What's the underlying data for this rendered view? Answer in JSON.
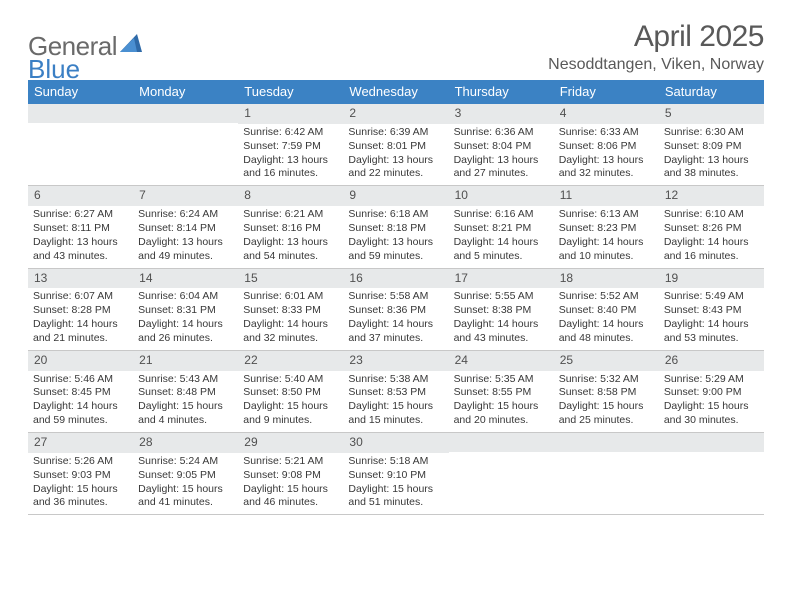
{
  "logo": {
    "part1": "General",
    "part2": "Blue"
  },
  "title": "April 2025",
  "location": "Nesoddtangen, Viken, Norway",
  "weekdays": [
    "Sunday",
    "Monday",
    "Tuesday",
    "Wednesday",
    "Thursday",
    "Friday",
    "Saturday"
  ],
  "colors": {
    "header_bg": "#3b82c4",
    "header_text": "#ffffff",
    "daynum_bg": "#e7e9ea",
    "text": "#383838",
    "title_text": "#595959",
    "logo_gray": "#6a6a6a",
    "logo_blue": "#3b7fc4",
    "rule": "#c8c8c8"
  },
  "layout": {
    "cell_min_height": 78,
    "body_fontsize": 10.5,
    "daynum_fontsize": 12,
    "weekday_fontsize": 13
  },
  "weeks": [
    [
      {
        "empty": true
      },
      {
        "empty": true
      },
      {
        "num": "1",
        "sunrise": "Sunrise: 6:42 AM",
        "sunset": "Sunset: 7:59 PM",
        "daylight": "Daylight: 13 hours and 16 minutes."
      },
      {
        "num": "2",
        "sunrise": "Sunrise: 6:39 AM",
        "sunset": "Sunset: 8:01 PM",
        "daylight": "Daylight: 13 hours and 22 minutes."
      },
      {
        "num": "3",
        "sunrise": "Sunrise: 6:36 AM",
        "sunset": "Sunset: 8:04 PM",
        "daylight": "Daylight: 13 hours and 27 minutes."
      },
      {
        "num": "4",
        "sunrise": "Sunrise: 6:33 AM",
        "sunset": "Sunset: 8:06 PM",
        "daylight": "Daylight: 13 hours and 32 minutes."
      },
      {
        "num": "5",
        "sunrise": "Sunrise: 6:30 AM",
        "sunset": "Sunset: 8:09 PM",
        "daylight": "Daylight: 13 hours and 38 minutes."
      }
    ],
    [
      {
        "num": "6",
        "sunrise": "Sunrise: 6:27 AM",
        "sunset": "Sunset: 8:11 PM",
        "daylight": "Daylight: 13 hours and 43 minutes."
      },
      {
        "num": "7",
        "sunrise": "Sunrise: 6:24 AM",
        "sunset": "Sunset: 8:14 PM",
        "daylight": "Daylight: 13 hours and 49 minutes."
      },
      {
        "num": "8",
        "sunrise": "Sunrise: 6:21 AM",
        "sunset": "Sunset: 8:16 PM",
        "daylight": "Daylight: 13 hours and 54 minutes."
      },
      {
        "num": "9",
        "sunrise": "Sunrise: 6:18 AM",
        "sunset": "Sunset: 8:18 PM",
        "daylight": "Daylight: 13 hours and 59 minutes."
      },
      {
        "num": "10",
        "sunrise": "Sunrise: 6:16 AM",
        "sunset": "Sunset: 8:21 PM",
        "daylight": "Daylight: 14 hours and 5 minutes."
      },
      {
        "num": "11",
        "sunrise": "Sunrise: 6:13 AM",
        "sunset": "Sunset: 8:23 PM",
        "daylight": "Daylight: 14 hours and 10 minutes."
      },
      {
        "num": "12",
        "sunrise": "Sunrise: 6:10 AM",
        "sunset": "Sunset: 8:26 PM",
        "daylight": "Daylight: 14 hours and 16 minutes."
      }
    ],
    [
      {
        "num": "13",
        "sunrise": "Sunrise: 6:07 AM",
        "sunset": "Sunset: 8:28 PM",
        "daylight": "Daylight: 14 hours and 21 minutes."
      },
      {
        "num": "14",
        "sunrise": "Sunrise: 6:04 AM",
        "sunset": "Sunset: 8:31 PM",
        "daylight": "Daylight: 14 hours and 26 minutes."
      },
      {
        "num": "15",
        "sunrise": "Sunrise: 6:01 AM",
        "sunset": "Sunset: 8:33 PM",
        "daylight": "Daylight: 14 hours and 32 minutes."
      },
      {
        "num": "16",
        "sunrise": "Sunrise: 5:58 AM",
        "sunset": "Sunset: 8:36 PM",
        "daylight": "Daylight: 14 hours and 37 minutes."
      },
      {
        "num": "17",
        "sunrise": "Sunrise: 5:55 AM",
        "sunset": "Sunset: 8:38 PM",
        "daylight": "Daylight: 14 hours and 43 minutes."
      },
      {
        "num": "18",
        "sunrise": "Sunrise: 5:52 AM",
        "sunset": "Sunset: 8:40 PM",
        "daylight": "Daylight: 14 hours and 48 minutes."
      },
      {
        "num": "19",
        "sunrise": "Sunrise: 5:49 AM",
        "sunset": "Sunset: 8:43 PM",
        "daylight": "Daylight: 14 hours and 53 minutes."
      }
    ],
    [
      {
        "num": "20",
        "sunrise": "Sunrise: 5:46 AM",
        "sunset": "Sunset: 8:45 PM",
        "daylight": "Daylight: 14 hours and 59 minutes."
      },
      {
        "num": "21",
        "sunrise": "Sunrise: 5:43 AM",
        "sunset": "Sunset: 8:48 PM",
        "daylight": "Daylight: 15 hours and 4 minutes."
      },
      {
        "num": "22",
        "sunrise": "Sunrise: 5:40 AM",
        "sunset": "Sunset: 8:50 PM",
        "daylight": "Daylight: 15 hours and 9 minutes."
      },
      {
        "num": "23",
        "sunrise": "Sunrise: 5:38 AM",
        "sunset": "Sunset: 8:53 PM",
        "daylight": "Daylight: 15 hours and 15 minutes."
      },
      {
        "num": "24",
        "sunrise": "Sunrise: 5:35 AM",
        "sunset": "Sunset: 8:55 PM",
        "daylight": "Daylight: 15 hours and 20 minutes."
      },
      {
        "num": "25",
        "sunrise": "Sunrise: 5:32 AM",
        "sunset": "Sunset: 8:58 PM",
        "daylight": "Daylight: 15 hours and 25 minutes."
      },
      {
        "num": "26",
        "sunrise": "Sunrise: 5:29 AM",
        "sunset": "Sunset: 9:00 PM",
        "daylight": "Daylight: 15 hours and 30 minutes."
      }
    ],
    [
      {
        "num": "27",
        "sunrise": "Sunrise: 5:26 AM",
        "sunset": "Sunset: 9:03 PM",
        "daylight": "Daylight: 15 hours and 36 minutes."
      },
      {
        "num": "28",
        "sunrise": "Sunrise: 5:24 AM",
        "sunset": "Sunset: 9:05 PM",
        "daylight": "Daylight: 15 hours and 41 minutes."
      },
      {
        "num": "29",
        "sunrise": "Sunrise: 5:21 AM",
        "sunset": "Sunset: 9:08 PM",
        "daylight": "Daylight: 15 hours and 46 minutes."
      },
      {
        "num": "30",
        "sunrise": "Sunrise: 5:18 AM",
        "sunset": "Sunset: 9:10 PM",
        "daylight": "Daylight: 15 hours and 51 minutes."
      },
      {
        "empty": true
      },
      {
        "empty": true
      },
      {
        "empty": true
      }
    ]
  ]
}
